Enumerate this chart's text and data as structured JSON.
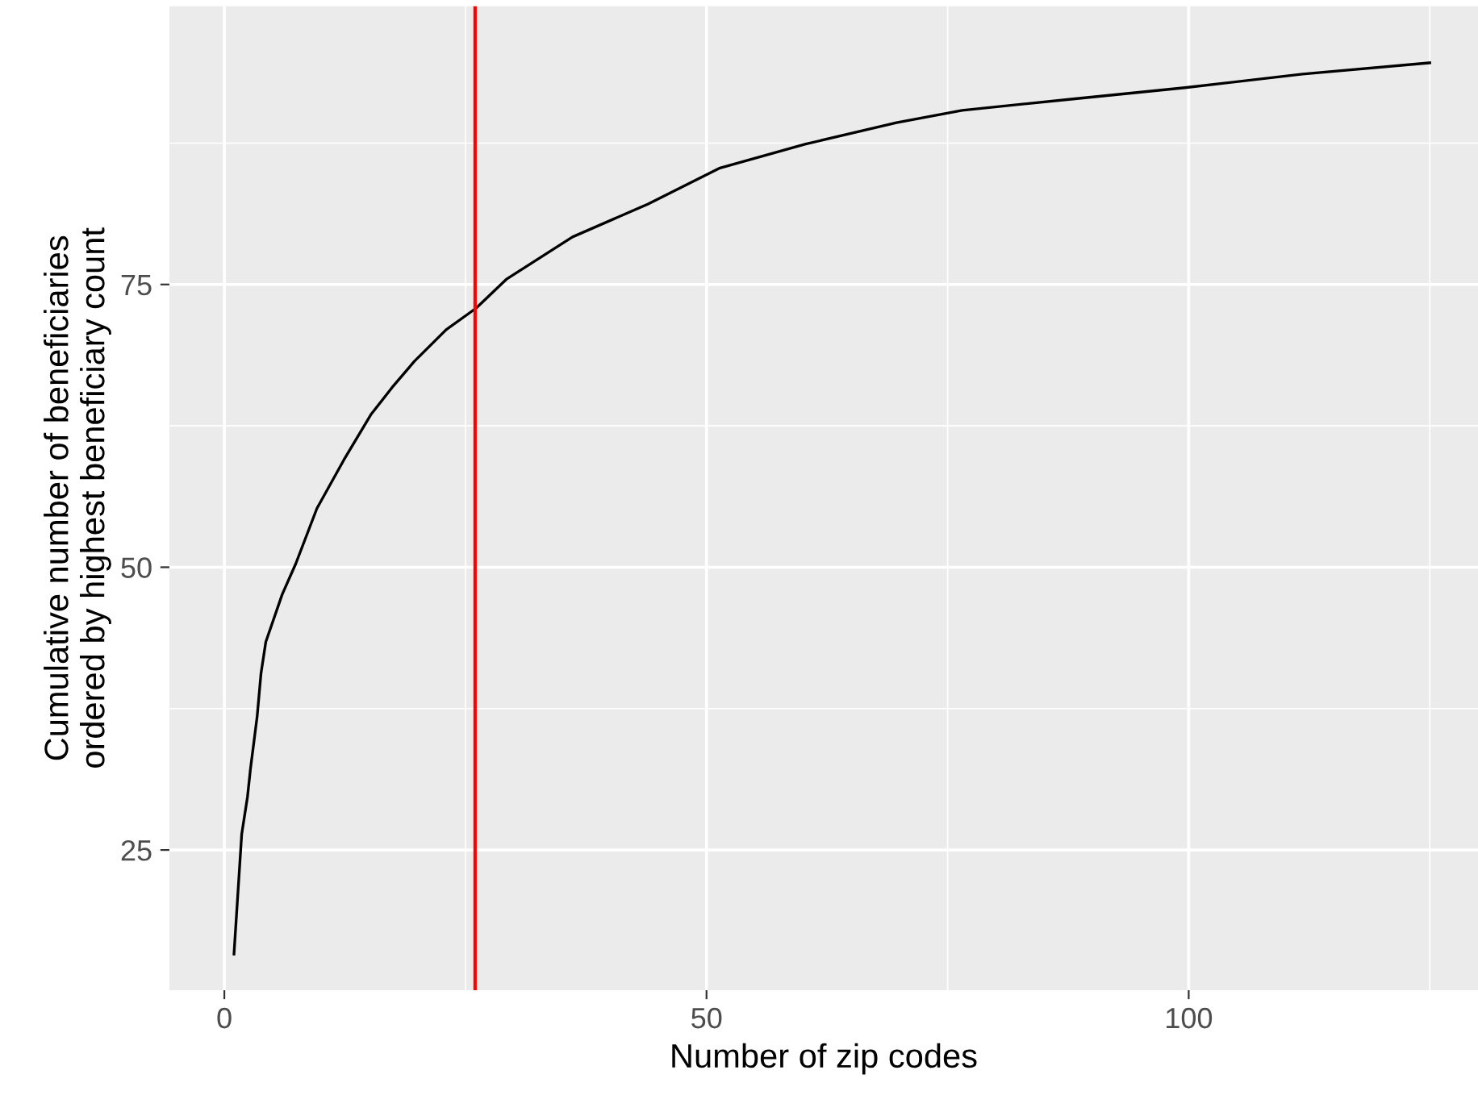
{
  "chart_data": {
    "type": "line",
    "xlabel": "Number of zip codes",
    "ylabel": "Cumulative number of beneficiaries\nordered by highest beneficiary count",
    "x": [
      1,
      1.8,
      2.4,
      2.7,
      3.4,
      3.8,
      4.3,
      6,
      7.4,
      9.6,
      12.4,
      15.2,
      17.4,
      19.7,
      23,
      26.1,
      29.3,
      36.1,
      43.9,
      51.4,
      60.2,
      69.7,
      76.5,
      88,
      99.6,
      111.8,
      125
    ],
    "series": [
      {
        "color": "#000000",
        "values": [
          15.8,
          26.4,
          29.7,
          32.1,
          36.8,
          40.6,
          43.4,
          47.6,
          50.3,
          55.2,
          59.5,
          63.5,
          65.9,
          68.2,
          71.0,
          72.9,
          75.5,
          79.2,
          82.1,
          85.3,
          87.4,
          89.3,
          90.4,
          91.4,
          92.4,
          93.6,
          94.6
        ]
      }
    ],
    "xlim": [
      -5.7,
      130
    ],
    "ylim": [
      12.6,
      99.6
    ],
    "xticks": [
      0,
      50,
      100
    ],
    "yticks": [
      25,
      50,
      75
    ],
    "ref_lines": [
      {
        "axis": "x",
        "value": 26,
        "color": "#ff0000"
      }
    ],
    "grid": true,
    "legend": false
  }
}
